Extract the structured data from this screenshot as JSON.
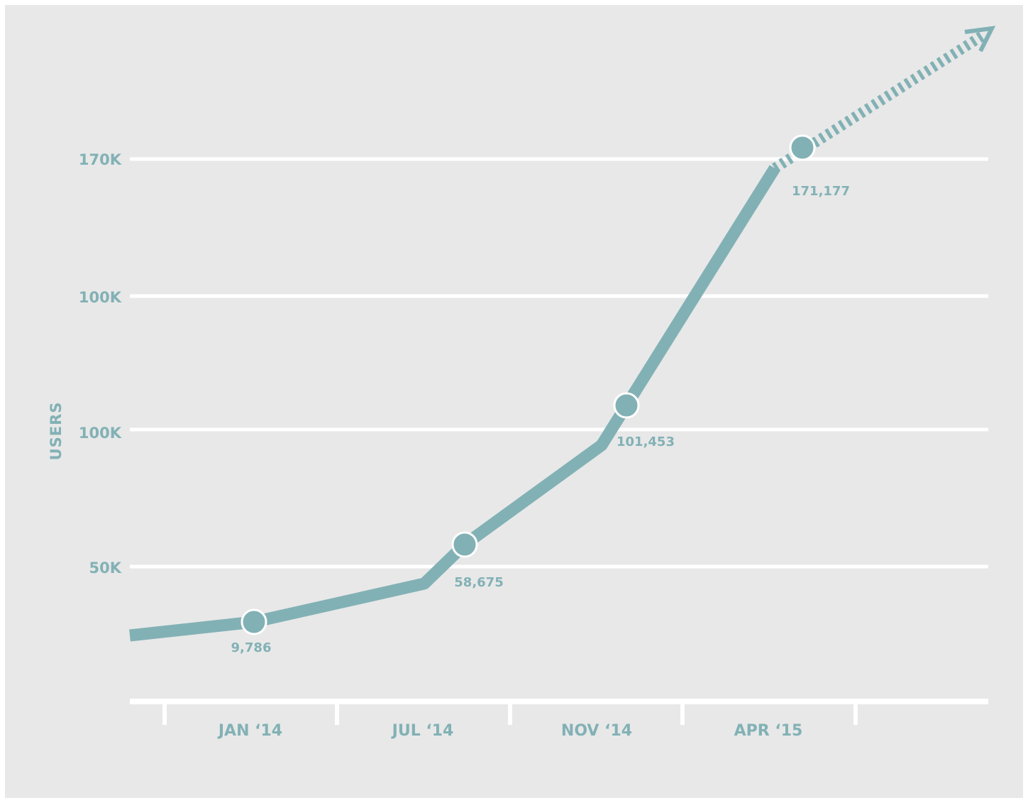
{
  "chart_data": {
    "type": "line",
    "ylabel": "USERS",
    "y_tick_labels": [
      "170K",
      "100K",
      "100K",
      "50K"
    ],
    "x_tick_labels": [
      "JAN ‘14",
      "JUL ‘14",
      "NOV ‘14",
      "APR ‘15"
    ],
    "x": [
      "JAN ‘14",
      "JUL ‘14",
      "NOV ‘14",
      "APR ‘15"
    ],
    "series": [
      {
        "values": [
          9786,
          58675,
          101453,
          171177
        ],
        "labels": [
          "9,786",
          "58,675",
          "101,453",
          "171,177"
        ]
      }
    ],
    "trend_continues": true,
    "grid": true,
    "colors": {
      "line": "#82b1b5",
      "grid": "#ffffff",
      "background": "#e8e8e8",
      "text": "#82b1b5"
    }
  }
}
